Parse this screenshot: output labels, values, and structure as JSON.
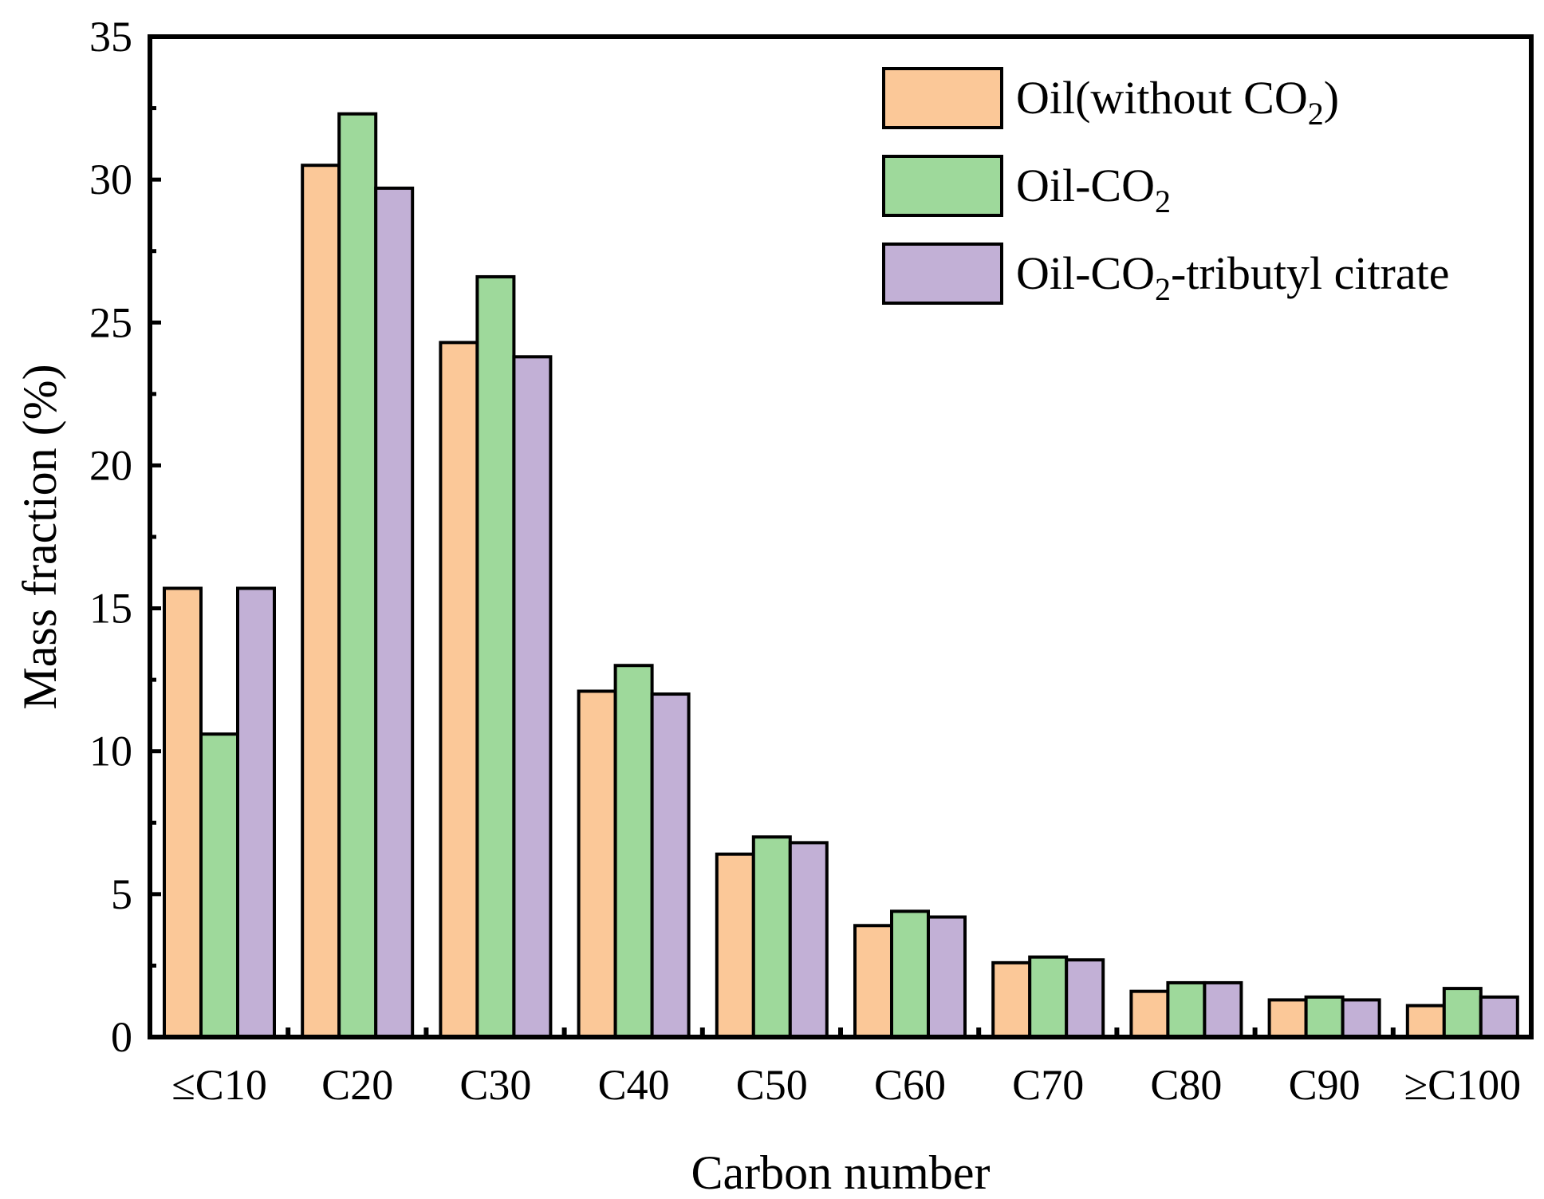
{
  "chart_data": {
    "type": "bar",
    "title": "",
    "xlabel": "Carbon number",
    "ylabel": "Mass fraction (%)",
    "ylim": [
      0,
      35
    ],
    "yticks": [
      0,
      5,
      10,
      15,
      20,
      25,
      30,
      35
    ],
    "categories": [
      "≤C10",
      "C20",
      "C30",
      "C40",
      "C50",
      "C60",
      "C70",
      "C80",
      "C90",
      "≥C100"
    ],
    "series": [
      {
        "name": "Oil(without CO2)",
        "legend_main": "Oil(without CO",
        "legend_sub": "2",
        "legend_tail": ")",
        "color": "#FBC898",
        "values": [
          15.7,
          30.5,
          24.3,
          12.1,
          6.4,
          3.9,
          2.6,
          1.6,
          1.3,
          1.1
        ]
      },
      {
        "name": "Oil-CO2",
        "legend_main": "Oil-CO",
        "legend_sub": "2",
        "legend_tail": "",
        "color": "#9ED99B",
        "values": [
          10.6,
          32.3,
          26.6,
          13.0,
          7.0,
          4.4,
          2.8,
          1.9,
          1.4,
          1.7
        ]
      },
      {
        "name": "Oil-CO2-tributyl citrate",
        "legend_main": "Oil-CO",
        "legend_sub": "2",
        "legend_tail": "-tributyl citrate",
        "color": "#C2B0D6",
        "values": [
          15.7,
          29.7,
          23.8,
          12.0,
          6.8,
          4.2,
          2.7,
          1.9,
          1.3,
          1.4
        ]
      }
    ],
    "legend_position": "top-right",
    "grid": false
  }
}
